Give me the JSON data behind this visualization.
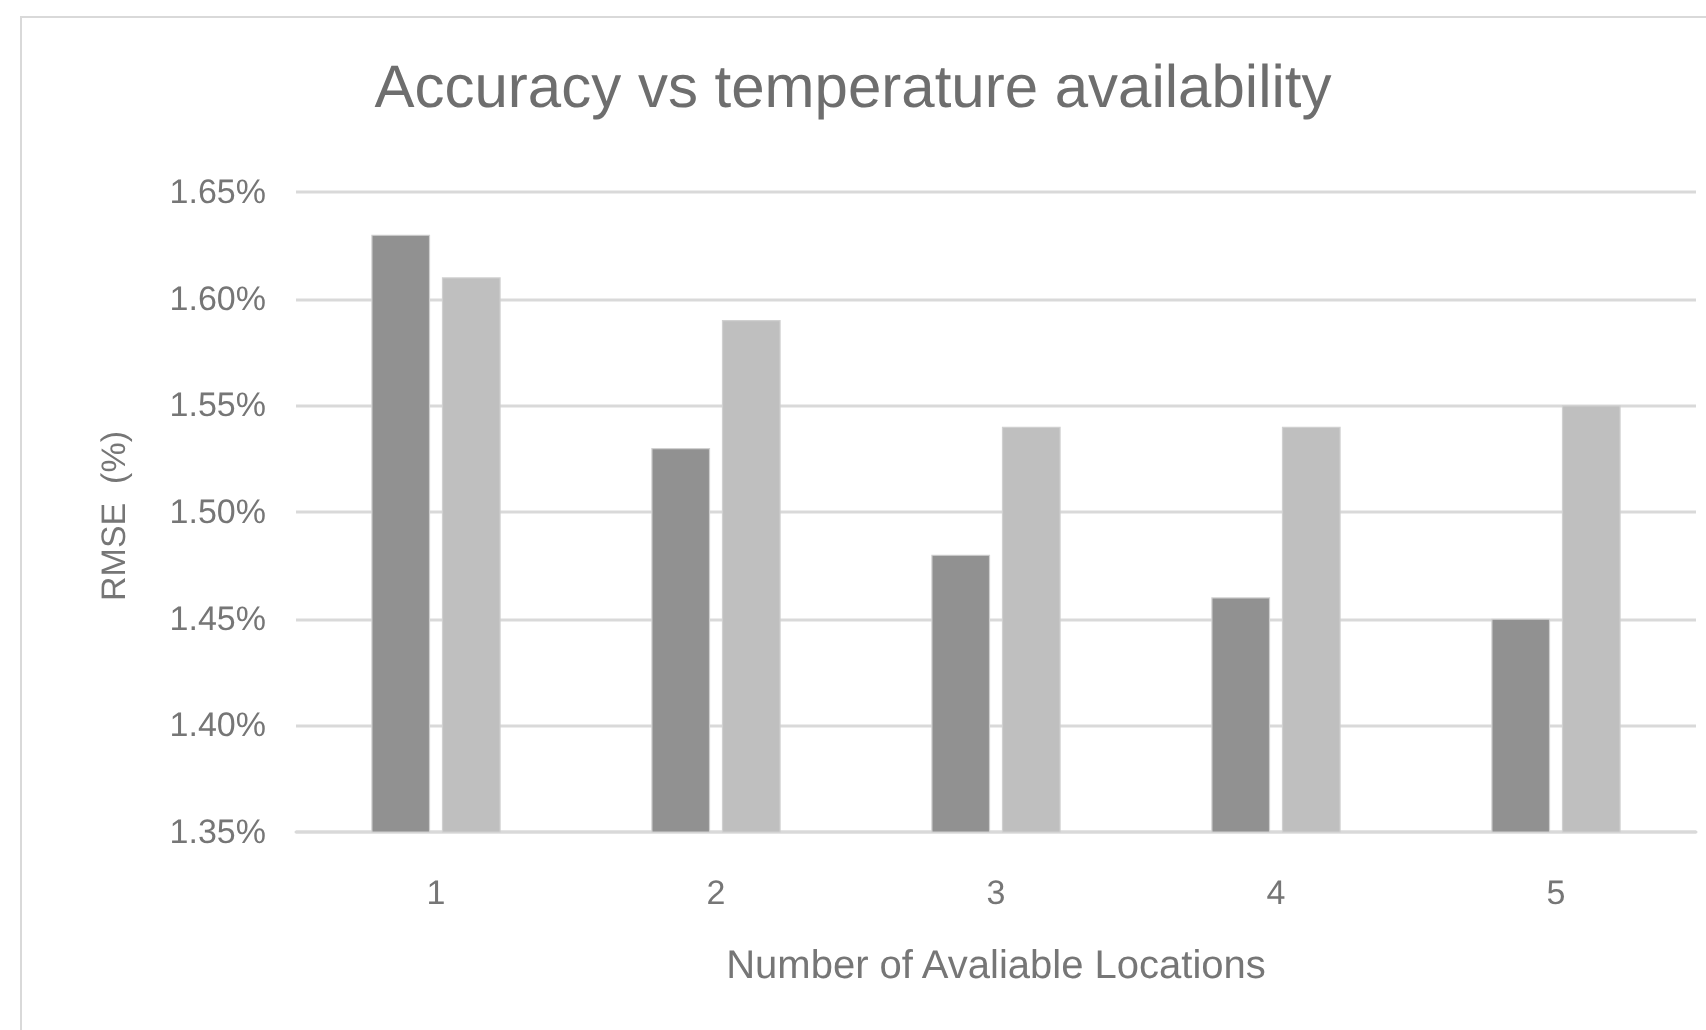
{
  "chart_data": {
    "type": "bar",
    "title": "Accuracy vs temperature availability",
    "xlabel": "Number of Avaliable Locations",
    "ylabel": "RMSE  (%)",
    "categories": [
      "1",
      "2",
      "3",
      "4",
      "5"
    ],
    "series": [
      {
        "color": "#919191",
        "values": [
          1.63,
          1.53,
          1.48,
          1.46,
          1.45
        ]
      },
      {
        "color": "#bfbfbf",
        "values": [
          1.61,
          1.59,
          1.54,
          1.54,
          1.55
        ]
      }
    ],
    "ylim": [
      1.35,
      1.65
    ],
    "yticks": [
      {
        "value": 1.35,
        "label": "1.35%"
      },
      {
        "value": 1.4,
        "label": "1.40%"
      },
      {
        "value": 1.45,
        "label": "1.45%"
      },
      {
        "value": 1.5,
        "label": "1.50%"
      },
      {
        "value": 1.55,
        "label": "1.55%"
      },
      {
        "value": 1.6,
        "label": "1.60%"
      },
      {
        "value": 1.65,
        "label": "1.65%"
      }
    ],
    "grid": "y"
  }
}
